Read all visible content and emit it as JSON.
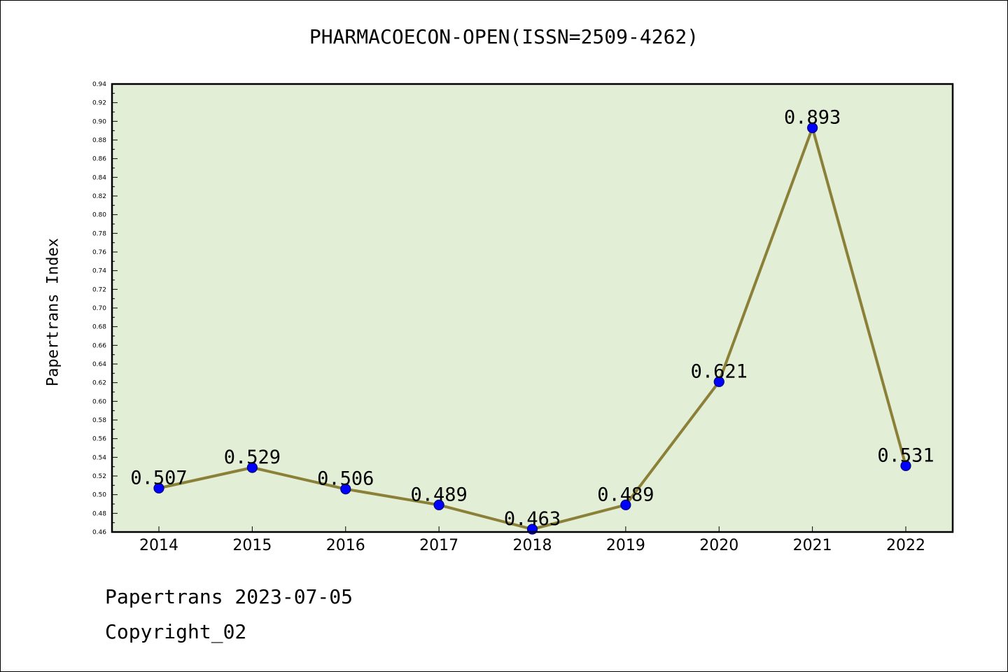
{
  "title": "PHARMACOECON-OPEN(ISSN=2509-4262)",
  "footer": {
    "line1": "Papertrans 2023-07-05",
    "line2": "Copyright_02"
  },
  "colors": {
    "plot_background": "#e2efd6",
    "line": "#8b8038",
    "marker": "#0000ff"
  },
  "chart_data": {
    "type": "line",
    "title": "PHARMACOECON-OPEN(ISSN=2509-4262)",
    "xlabel": "",
    "ylabel": "Papertrans Index",
    "categories": [
      "2014",
      "2015",
      "2016",
      "2017",
      "2018",
      "2019",
      "2020",
      "2021",
      "2022"
    ],
    "series": [
      {
        "values": [
          0.507,
          0.529,
          0.506,
          0.489,
          0.463,
          0.489,
          0.621,
          0.893,
          0.531
        ],
        "labels": [
          "0.507",
          "0.529",
          "0.506",
          "0.489",
          "0.463",
          "0.489",
          "0.621",
          "0.893",
          "0.531"
        ]
      }
    ],
    "ylim": [
      0.46,
      0.94
    ],
    "yticks": [
      "0.46",
      "0.48",
      "0.50",
      "0.52",
      "0.54",
      "0.56",
      "0.58",
      "0.60",
      "0.62",
      "0.64",
      "0.66",
      "0.68",
      "0.70",
      "0.72",
      "0.74",
      "0.76",
      "0.78",
      "0.80",
      "0.82",
      "0.84",
      "0.86",
      "0.88",
      "0.90",
      "0.92",
      "0.94"
    ],
    "grid": false,
    "legend": "none"
  }
}
